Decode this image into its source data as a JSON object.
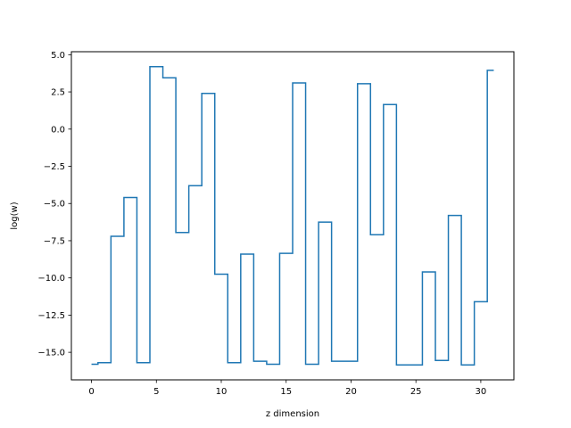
{
  "chart_data": {
    "type": "line",
    "drawstyle": "steps-mid",
    "xlabel": "z dimension",
    "ylabel": "log(w)",
    "xlim": [
      -1.55,
      32.55
    ],
    "ylim": [
      -16.85,
      5.2
    ],
    "xticks": [
      0,
      5,
      10,
      15,
      20,
      25,
      30
    ],
    "xtick_labels": [
      "0",
      "5",
      "10",
      "15",
      "20",
      "25",
      "30"
    ],
    "yticks": [
      5.0,
      2.5,
      0.0,
      -2.5,
      -5.0,
      -7.5,
      -10.0,
      -12.5,
      -15.0
    ],
    "ytick_labels": [
      "5.0",
      "2.5",
      "0.0",
      "−2.5",
      "−5.0",
      "−7.5",
      "−10.0",
      "−12.5",
      "−15.0"
    ],
    "grid": false,
    "line_color": "#1f77b4",
    "series": [
      {
        "x": [
          0,
          1,
          2,
          3,
          4,
          5,
          6,
          7,
          8,
          9,
          10,
          11,
          12,
          13,
          14,
          15,
          16,
          17,
          18,
          19,
          20,
          21,
          22,
          23,
          24,
          25,
          26,
          27,
          28,
          29,
          30,
          31
        ],
        "values": [
          -15.8,
          -15.7,
          -7.2,
          -4.6,
          -15.7,
          4.2,
          3.45,
          -6.95,
          -3.8,
          2.4,
          -9.75,
          -15.7,
          -8.4,
          -15.6,
          -15.8,
          -8.35,
          3.1,
          -15.8,
          -6.25,
          -15.6,
          -15.6,
          3.05,
          -7.1,
          1.65,
          -15.85,
          -15.85,
          -9.6,
          -15.55,
          -5.8,
          -15.85,
          -11.6,
          3.95
        ]
      }
    ]
  }
}
